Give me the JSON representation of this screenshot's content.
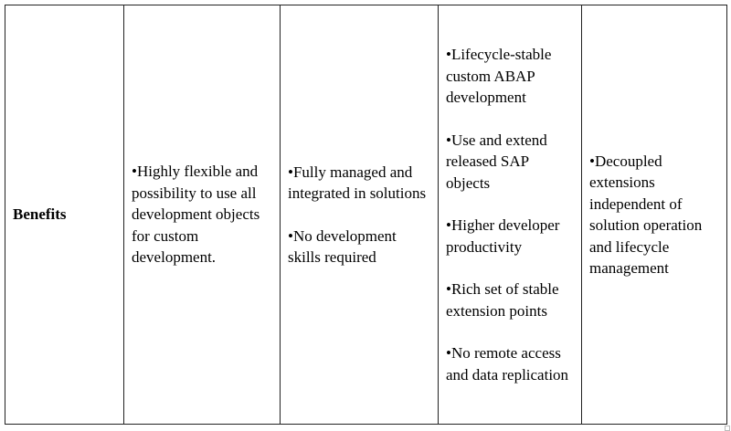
{
  "table": {
    "row_label": "Benefits",
    "columns": [
      {
        "items": [
          "•Highly flexible and possibility to use all development objects for custom development."
        ]
      },
      {
        "items": [
          "•Fully managed and integrated in solutions",
          "•No development skills required"
        ]
      },
      {
        "items": [
          "•Lifecycle-stable custom ABAP development",
          "•Use and extend released SAP objects",
          "•Higher developer productivity",
          "•Rich set of stable extension points",
          "•No remote access and data replication"
        ]
      },
      {
        "items": [
          "•Decoupled extensions independent of solution operation and lifecycle management"
        ]
      }
    ]
  }
}
